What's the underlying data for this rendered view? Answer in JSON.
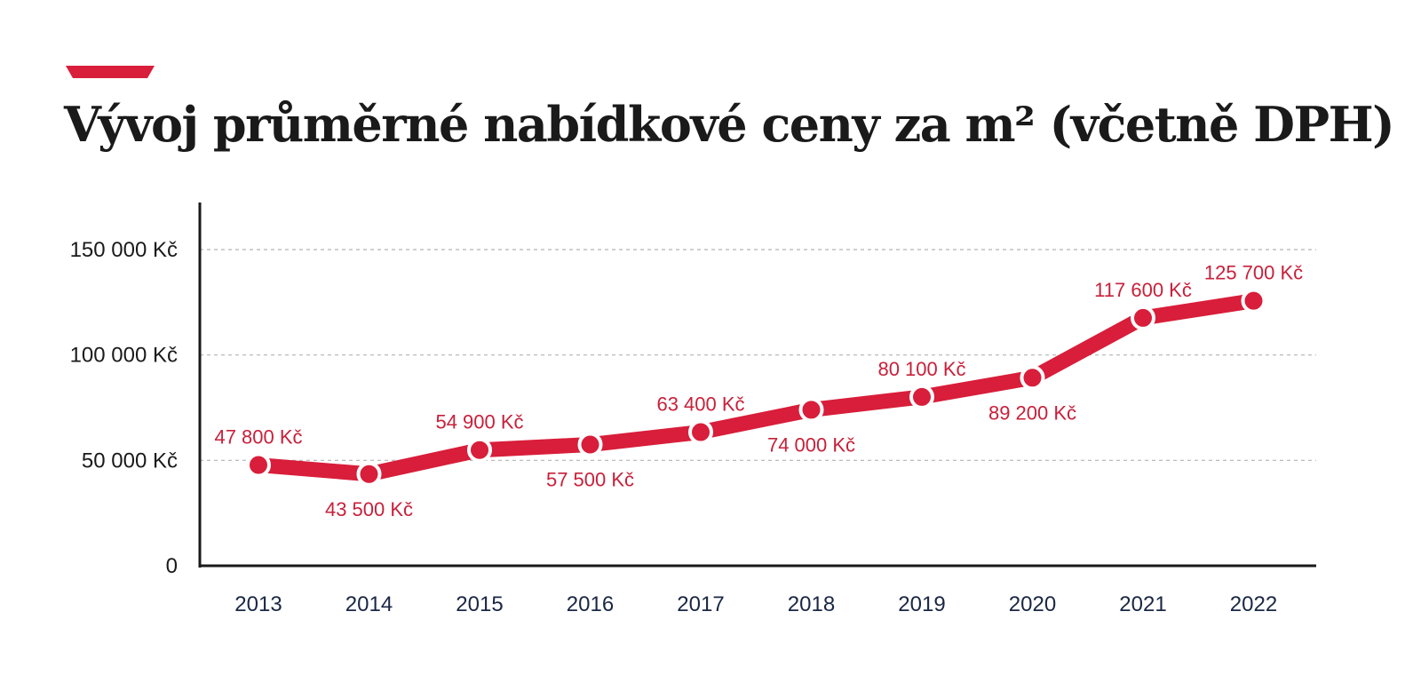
{
  "title": "Vývoj průměrné nabídkové ceny za m² (včetně DPH)",
  "colors": {
    "accent": "#d81e3a",
    "line": "#d81e3a",
    "label": "#c8203a",
    "grid": "#b3b3b3",
    "axis": "#1a1a1a"
  },
  "chart_data": {
    "type": "line",
    "title": "Vývoj průměrné nabídkové ceny za m² (včetně DPH)",
    "xlabel": "",
    "ylabel": "",
    "categories": [
      "2013",
      "2014",
      "2015",
      "2016",
      "2017",
      "2018",
      "2019",
      "2020",
      "2021",
      "2022"
    ],
    "values": [
      47800,
      43500,
      54900,
      57500,
      63400,
      74000,
      80100,
      89200,
      117600,
      125700
    ],
    "data_labels": [
      "47 800 Kč",
      "43 500 Kč",
      "54 900 Kč",
      "57 500 Kč",
      "63 400 Kč",
      "74 000 Kč",
      "80 100 Kč",
      "89 200 Kč",
      "117 600 Kč",
      "125 700 Kč"
    ],
    "label_side": [
      "above",
      "below",
      "above",
      "below",
      "above",
      "below",
      "above",
      "below",
      "above",
      "above"
    ],
    "yticks": [
      0,
      50000,
      100000,
      150000
    ],
    "ytick_labels": [
      "0",
      "50 000 Kč",
      "100 000 Kč",
      "150 000 Kč"
    ],
    "ylim": [
      0,
      170000
    ],
    "grid": true,
    "legend": "none"
  }
}
